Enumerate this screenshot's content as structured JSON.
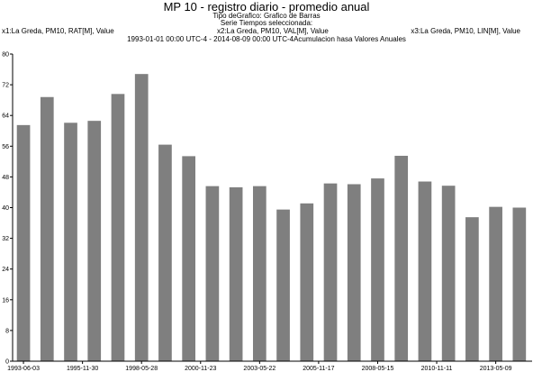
{
  "header": {
    "title": "MP 10 - registro diario - promedio anual",
    "chart_kind": "Tipo deGrafico: Grafico de Barras",
    "series_heading": "Serie Tiempos seleccionada:",
    "series": [
      "x1:La Greda, PM10, RAT[M], Value",
      "x2:La Greda, PM10, VAL[M], Value",
      "x3:La Greda, PM10, LIN[M], Value"
    ],
    "range": "1993-01-01 00:00 UTC-4 - 2014-08-09 00:00 UTC-4Acumulacion hasa Valores Anuales"
  },
  "chart_data": {
    "type": "bar",
    "title": "MP 10 - registro diario - promedio anual",
    "xlabel": "",
    "ylabel": "",
    "ylim": [
      0,
      80
    ],
    "yticks": [
      0,
      8,
      16,
      24,
      32,
      40,
      48,
      56,
      64,
      72,
      80
    ],
    "xtick_labels": [
      "1993-06-03",
      "1995-11-30",
      "1998-05-28",
      "2000-11-23",
      "2003-05-22",
      "2005-11-17",
      "2008-05-15",
      "2010-11-11",
      "2013-05-09"
    ],
    "grid": false,
    "bar_color": "#7f7f7f",
    "values": [
      61.5,
      68.8,
      62.1,
      62.6,
      69.6,
      74.8,
      56.4,
      53.4,
      45.6,
      45.3,
      45.6,
      39.5,
      41.1,
      46.3,
      46.1,
      47.6,
      53.5,
      46.8,
      45.7,
      37.5,
      40.2,
      40.0
    ]
  }
}
